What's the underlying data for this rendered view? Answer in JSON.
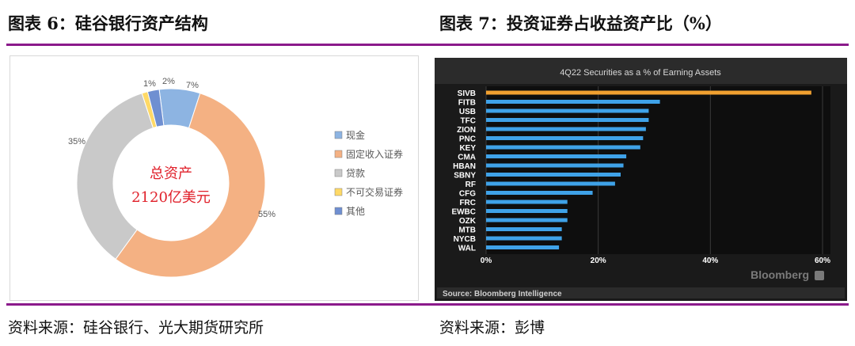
{
  "header": {
    "left_title": "图表 6：硅谷银行资产结构",
    "right_title": "图表 7：投资证券占收益资产比（%）"
  },
  "footer": {
    "left_source": "资料来源：硅谷银行、光大期货研究所",
    "right_source": "资料来源：彭博"
  },
  "chart_data": [
    {
      "type": "pie",
      "center_label_line1": "总资产",
      "center_label_line2": "2120亿美元",
      "slices": [
        {
          "name": "现金",
          "value": 7,
          "label": "7%",
          "color": "#8db4e2"
        },
        {
          "name": "固定收入证券",
          "value": 55,
          "label": "55%",
          "color": "#f4b183"
        },
        {
          "name": "贷款",
          "value": 35,
          "label": "35%",
          "color": "#c9c9c9"
        },
        {
          "name": "不可交易证券",
          "value": 1,
          "label": "1%",
          "color": "#ffd966"
        },
        {
          "name": "其他",
          "value": 2,
          "label": "2%",
          "color": "#6f8fd1"
        }
      ],
      "legend_position": "right"
    },
    {
      "type": "bar",
      "orientation": "horizontal",
      "title": "4Q22 Securities as a % of Earning Assets",
      "categories": [
        "SIVB",
        "FITB",
        "USB",
        "TFC",
        "ZION",
        "PNC",
        "KEY",
        "CMA",
        "HBAN",
        "SBNY",
        "RF",
        "CFG",
        "FRC",
        "EWBC",
        "OZK",
        "MTB",
        "NYCB",
        "WAL"
      ],
      "values": [
        58,
        31,
        29,
        29,
        28.5,
        28,
        27.5,
        25,
        24.5,
        24,
        23,
        19,
        14.5,
        14.5,
        14.5,
        13.5,
        13.5,
        13
      ],
      "highlight": "SIVB",
      "bar_color": "#3fa2e8",
      "highlight_color": "#f0a030",
      "xlim": [
        0,
        60
      ],
      "xticks": [
        "0%",
        "20%",
        "40%",
        "60%"
      ],
      "grid": true,
      "brand": "Bloomberg",
      "source_note": "Source: Bloomberg Intelligence"
    }
  ]
}
